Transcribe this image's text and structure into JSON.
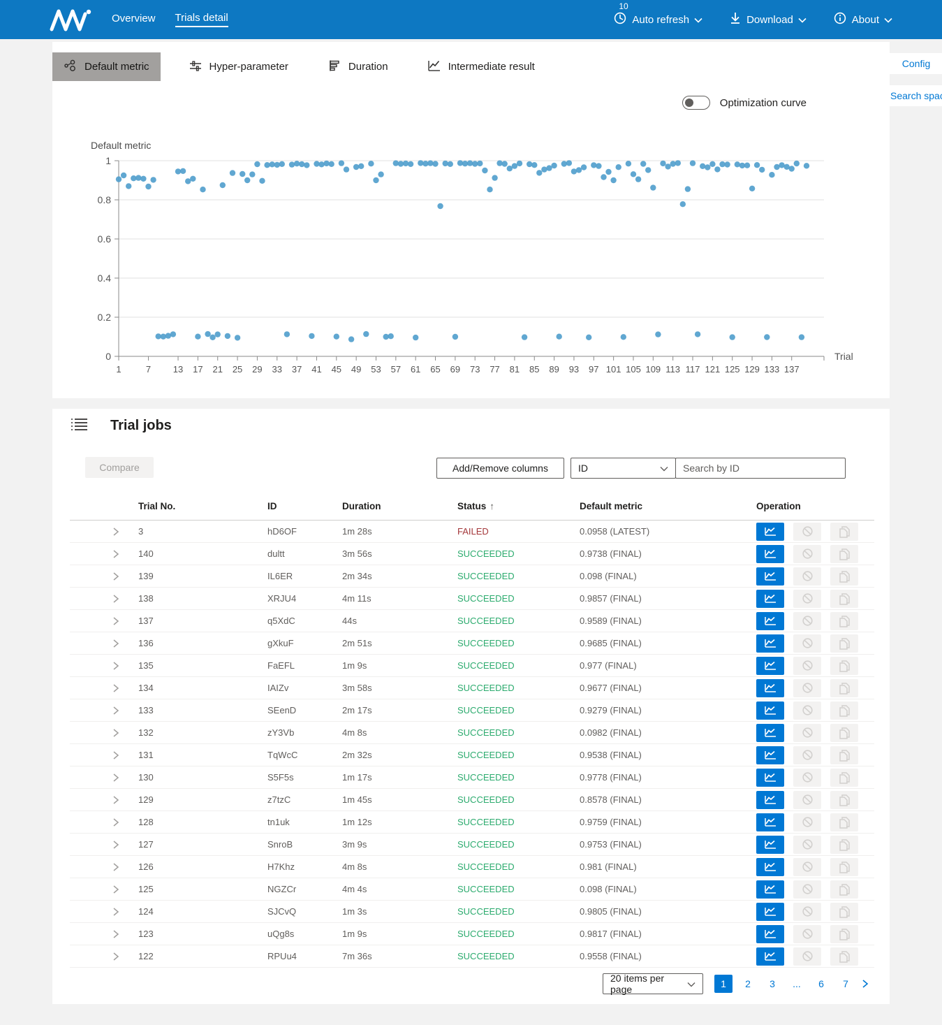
{
  "colors": {
    "navbar": "#0d78c2",
    "accent": "#0078d4",
    "failed": "#a4373a",
    "succeeded": "#2cab6e",
    "scatter_dot": "#4f9dcc",
    "selected_tab_bg": "#a2a09e"
  },
  "navbar": {
    "logo": "NNI",
    "items": [
      {
        "label": "Overview",
        "active": false
      },
      {
        "label": "Trials detail",
        "active": true
      }
    ],
    "auto_refresh": {
      "badge": "10",
      "label": "Auto refresh"
    },
    "download_label": "Download",
    "about_label": "About"
  },
  "tabs": [
    {
      "label": "Default metric",
      "icon": "scatter-icon",
      "selected": true
    },
    {
      "label": "Hyper-parameter",
      "icon": "sliders-icon",
      "selected": false
    },
    {
      "label": "Duration",
      "icon": "bars-icon",
      "selected": false
    },
    {
      "label": "Intermediate result",
      "icon": "line-chart-icon",
      "selected": false
    }
  ],
  "side_buttons": {
    "config": "Config",
    "search_space": "Search space"
  },
  "optimization_toggle": {
    "label": "Optimization curve",
    "on": false
  },
  "chart_data": {
    "type": "scatter",
    "title": "Default metric",
    "xlabel": "Trial",
    "ylabel": "",
    "xlim": [
      1,
      140
    ],
    "ylim": [
      0,
      1
    ],
    "grid": true,
    "point_color": "#4f9dcc",
    "x_ticks": [
      1,
      7,
      13,
      17,
      21,
      25,
      29,
      33,
      37,
      41,
      45,
      49,
      53,
      57,
      61,
      65,
      69,
      73,
      77,
      81,
      85,
      89,
      93,
      97,
      101,
      105,
      109,
      113,
      117,
      121,
      125,
      129,
      133,
      137
    ],
    "y_ticks": [
      0,
      0.2,
      0.4,
      0.6,
      0.8,
      1
    ],
    "series": [
      {
        "name": "Default metric",
        "points": [
          [
            1,
            0.905
          ],
          [
            2,
            0.925
          ],
          [
            3,
            0.87
          ],
          [
            4,
            0.91
          ],
          [
            5,
            0.912
          ],
          [
            6,
            0.908
          ],
          [
            7,
            0.868
          ],
          [
            8,
            0.902
          ],
          [
            9,
            0.102
          ],
          [
            10,
            0.101
          ],
          [
            11,
            0.105
          ],
          [
            12,
            0.113
          ],
          [
            13,
            0.945
          ],
          [
            14,
            0.947
          ],
          [
            15,
            0.895
          ],
          [
            16,
            0.908
          ],
          [
            17,
            0.101
          ],
          [
            18,
            0.853
          ],
          [
            19,
            0.114
          ],
          [
            20,
            0.097
          ],
          [
            21,
            0.112
          ],
          [
            22,
            0.875
          ],
          [
            23,
            0.104
          ],
          [
            24,
            0.937
          ],
          [
            25,
            0.095
          ],
          [
            26,
            0.932
          ],
          [
            27,
            0.9
          ],
          [
            28,
            0.93
          ],
          [
            29,
            0.982
          ],
          [
            30,
            0.897
          ],
          [
            31,
            0.978
          ],
          [
            32,
            0.981
          ],
          [
            33,
            0.979
          ],
          [
            34,
            0.983
          ],
          [
            35,
            0.113
          ],
          [
            36,
            0.98
          ],
          [
            37,
            0.985
          ],
          [
            38,
            0.982
          ],
          [
            39,
            0.977
          ],
          [
            40,
            0.104
          ],
          [
            41,
            0.984
          ],
          [
            42,
            0.981
          ],
          [
            43,
            0.986
          ],
          [
            44,
            0.983
          ],
          [
            45,
            0.101
          ],
          [
            46,
            0.987
          ],
          [
            47,
            0.955
          ],
          [
            48,
            0.087
          ],
          [
            49,
            0.968
          ],
          [
            50,
            0.972
          ],
          [
            51,
            0.114
          ],
          [
            52,
            0.985
          ],
          [
            53,
            0.9
          ],
          [
            54,
            0.93
          ],
          [
            55,
            0.1
          ],
          [
            56,
            0.103
          ],
          [
            57,
            0.987
          ],
          [
            58,
            0.984
          ],
          [
            59,
            0.986
          ],
          [
            60,
            0.983
          ],
          [
            61,
            0.096
          ],
          [
            62,
            0.988
          ],
          [
            63,
            0.985
          ],
          [
            64,
            0.987
          ],
          [
            65,
            0.984
          ],
          [
            66,
            0.768
          ],
          [
            67,
            0.986
          ],
          [
            68,
            0.983
          ],
          [
            69,
            0.1
          ],
          [
            70,
            0.988
          ],
          [
            71,
            0.985
          ],
          [
            72,
            0.987
          ],
          [
            73,
            0.984
          ],
          [
            74,
            0.986
          ],
          [
            75,
            0.95
          ],
          [
            76,
            0.853
          ],
          [
            77,
            0.912
          ],
          [
            78,
            0.987
          ],
          [
            79,
            0.984
          ],
          [
            80,
            0.96
          ],
          [
            81,
            0.973
          ],
          [
            82,
            0.986
          ],
          [
            83,
            0.098
          ],
          [
            84,
            0.982
          ],
          [
            85,
            0.978
          ],
          [
            86,
            0.938
          ],
          [
            87,
            0.955
          ],
          [
            88,
            0.962
          ],
          [
            89,
            0.975
          ],
          [
            90,
            0.101
          ],
          [
            91,
            0.984
          ],
          [
            92,
            0.988
          ],
          [
            93,
            0.945
          ],
          [
            94,
            0.952
          ],
          [
            95,
            0.966
          ],
          [
            96,
            0.097
          ],
          [
            97,
            0.977
          ],
          [
            98,
            0.973
          ],
          [
            99,
            0.916
          ],
          [
            100,
            0.943
          ],
          [
            101,
            0.9
          ],
          [
            102,
            0.967
          ],
          [
            103,
            0.099
          ],
          [
            104,
            0.985
          ],
          [
            105,
            0.931
          ],
          [
            106,
            0.905
          ],
          [
            107,
            0.984
          ],
          [
            108,
            0.952
          ],
          [
            109,
            0.862
          ],
          [
            110,
            0.112
          ],
          [
            111,
            0.986
          ],
          [
            112,
            0.97
          ],
          [
            113,
            0.984
          ],
          [
            114,
            0.988
          ],
          [
            115,
            0.778
          ],
          [
            116,
            0.855
          ],
          [
            117,
            0.987
          ],
          [
            118,
            0.113
          ],
          [
            119,
            0.972
          ],
          [
            120,
            0.966
          ],
          [
            121,
            0.983
          ],
          [
            122,
            0.9558
          ],
          [
            123,
            0.9817
          ],
          [
            124,
            0.9805
          ],
          [
            125,
            0.098
          ],
          [
            126,
            0.981
          ],
          [
            127,
            0.9753
          ],
          [
            128,
            0.9759
          ],
          [
            129,
            0.8578
          ],
          [
            130,
            0.9778
          ],
          [
            131,
            0.9538
          ],
          [
            132,
            0.0982
          ],
          [
            133,
            0.9279
          ],
          [
            134,
            0.9677
          ],
          [
            135,
            0.977
          ],
          [
            136,
            0.9685
          ],
          [
            137,
            0.9589
          ],
          [
            138,
            0.9857
          ],
          [
            139,
            0.098
          ],
          [
            140,
            0.9738
          ]
        ]
      }
    ]
  },
  "trial_jobs": {
    "title": "Trial jobs",
    "compare_label": "Compare",
    "add_remove_label": "Add/Remove columns",
    "filter_selected": "ID",
    "search_placeholder": "Search by ID",
    "columns": [
      "Trial No.",
      "ID",
      "Duration",
      "Status",
      "Default metric",
      "Operation"
    ],
    "sorted_column": "Status",
    "sort_arrow": "↑",
    "rows": [
      {
        "trial_no": "3",
        "id": "hD6OF",
        "duration": "1m 28s",
        "status": "FAILED",
        "metric": "0.0958 (LATEST)"
      },
      {
        "trial_no": "140",
        "id": "dultt",
        "duration": "3m 56s",
        "status": "SUCCEEDED",
        "metric": "0.9738 (FINAL)"
      },
      {
        "trial_no": "139",
        "id": "IL6ER",
        "duration": "2m 34s",
        "status": "SUCCEEDED",
        "metric": "0.098 (FINAL)"
      },
      {
        "trial_no": "138",
        "id": "XRJU4",
        "duration": "4m 11s",
        "status": "SUCCEEDED",
        "metric": "0.9857 (FINAL)"
      },
      {
        "trial_no": "137",
        "id": "q5XdC",
        "duration": "44s",
        "status": "SUCCEEDED",
        "metric": "0.9589 (FINAL)"
      },
      {
        "trial_no": "136",
        "id": "gXkuF",
        "duration": "2m 51s",
        "status": "SUCCEEDED",
        "metric": "0.9685 (FINAL)"
      },
      {
        "trial_no": "135",
        "id": "FaEFL",
        "duration": "1m 9s",
        "status": "SUCCEEDED",
        "metric": "0.977 (FINAL)"
      },
      {
        "trial_no": "134",
        "id": "IAIZv",
        "duration": "3m 58s",
        "status": "SUCCEEDED",
        "metric": "0.9677 (FINAL)"
      },
      {
        "trial_no": "133",
        "id": "SEenD",
        "duration": "2m 17s",
        "status": "SUCCEEDED",
        "metric": "0.9279 (FINAL)"
      },
      {
        "trial_no": "132",
        "id": "zY3Vb",
        "duration": "4m 8s",
        "status": "SUCCEEDED",
        "metric": "0.0982 (FINAL)"
      },
      {
        "trial_no": "131",
        "id": "TqWcC",
        "duration": "2m 32s",
        "status": "SUCCEEDED",
        "metric": "0.9538 (FINAL)"
      },
      {
        "trial_no": "130",
        "id": "S5F5s",
        "duration": "1m 17s",
        "status": "SUCCEEDED",
        "metric": "0.9778 (FINAL)"
      },
      {
        "trial_no": "129",
        "id": "z7tzC",
        "duration": "1m 45s",
        "status": "SUCCEEDED",
        "metric": "0.8578 (FINAL)"
      },
      {
        "trial_no": "128",
        "id": "tn1uk",
        "duration": "1m 12s",
        "status": "SUCCEEDED",
        "metric": "0.9759 (FINAL)"
      },
      {
        "trial_no": "127",
        "id": "SnroB",
        "duration": "3m 9s",
        "status": "SUCCEEDED",
        "metric": "0.9753 (FINAL)"
      },
      {
        "trial_no": "126",
        "id": "H7Khz",
        "duration": "4m 8s",
        "status": "SUCCEEDED",
        "metric": "0.981 (FINAL)"
      },
      {
        "trial_no": "125",
        "id": "NGZCr",
        "duration": "4m 4s",
        "status": "SUCCEEDED",
        "metric": "0.098 (FINAL)"
      },
      {
        "trial_no": "124",
        "id": "SJCvQ",
        "duration": "1m 3s",
        "status": "SUCCEEDED",
        "metric": "0.9805 (FINAL)"
      },
      {
        "trial_no": "123",
        "id": "uQg8s",
        "duration": "1m 9s",
        "status": "SUCCEEDED",
        "metric": "0.9817 (FINAL)"
      },
      {
        "trial_no": "122",
        "id": "RPUu4",
        "duration": "7m 36s",
        "status": "SUCCEEDED",
        "metric": "0.9558 (FINAL)"
      }
    ],
    "pagination": {
      "page_size_label": "20 items per page",
      "pages": [
        {
          "label": "1",
          "active": true
        },
        {
          "label": "2",
          "active": false
        },
        {
          "label": "3",
          "active": false
        },
        {
          "label": "...",
          "active": false
        },
        {
          "label": "6",
          "active": false
        },
        {
          "label": "7",
          "active": false
        }
      ]
    }
  }
}
